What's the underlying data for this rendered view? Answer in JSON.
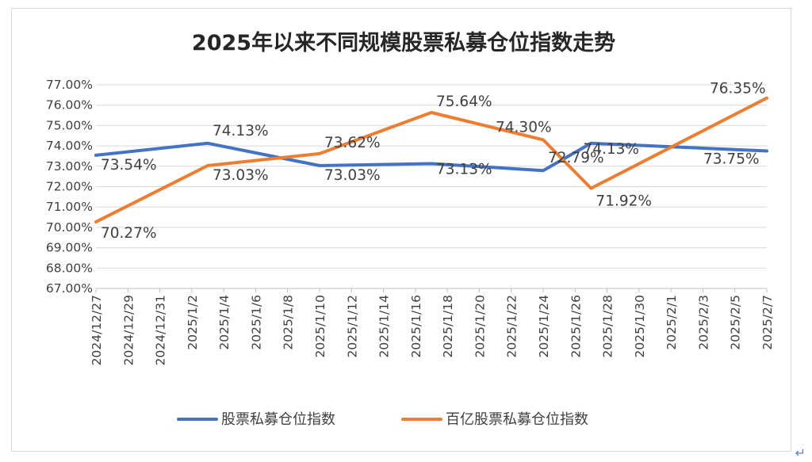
{
  "chart_data": {
    "type": "line",
    "title": "2025年以来不同规模股票私募仓位指数走势",
    "xlabel": "",
    "ylabel": "",
    "ylim": [
      67.0,
      77.0
    ],
    "ytick_labels": [
      "67.00%",
      "68.00%",
      "69.00%",
      "70.00%",
      "71.00%",
      "72.00%",
      "73.00%",
      "74.00%",
      "75.00%",
      "76.00%",
      "77.00%"
    ],
    "xtick_labels": [
      "2024/12/27",
      "2024/12/29",
      "2024/12/31",
      "2025/1/2",
      "2025/1/4",
      "2025/1/6",
      "2025/1/8",
      "2025/1/10",
      "2025/1/12",
      "2025/1/14",
      "2025/1/16",
      "2025/1/18",
      "2025/1/20",
      "2025/1/22",
      "2025/1/24",
      "2025/1/26",
      "2025/1/28",
      "2025/1/30",
      "2025/2/1",
      "2025/2/3",
      "2025/2/5",
      "2025/2/7"
    ],
    "x_start": "2024/12/27",
    "x_end": "2025/2/7",
    "grid": true,
    "legend_position": "bottom",
    "series": [
      {
        "name": "股票私募仓位指数",
        "color": "#4472c4",
        "points": [
          {
            "x": "2024/12/27",
            "y": 73.54,
            "label": "73.54%"
          },
          {
            "x": "2025/1/3",
            "y": 74.13,
            "label": "74.13%"
          },
          {
            "x": "2025/1/10",
            "y": 73.03,
            "label": "73.03%"
          },
          {
            "x": "2025/1/17",
            "y": 73.13,
            "label": "73.13%"
          },
          {
            "x": "2025/1/24",
            "y": 72.79,
            "label": "72.79%"
          },
          {
            "x": "2025/1/27",
            "y": 74.13,
            "label": "74.13%"
          },
          {
            "x": "2025/2/7",
            "y": 73.75,
            "label": "73.75%"
          }
        ]
      },
      {
        "name": "百亿股票私募仓位指数",
        "color": "#ed7d31",
        "points": [
          {
            "x": "2024/12/27",
            "y": 70.27,
            "label": "70.27%"
          },
          {
            "x": "2025/1/3",
            "y": 73.03,
            "label": "73.03%"
          },
          {
            "x": "2025/1/10",
            "y": 73.62,
            "label": "73.62%"
          },
          {
            "x": "2025/1/17",
            "y": 75.64,
            "label": "75.64%"
          },
          {
            "x": "2025/1/24",
            "y": 74.3,
            "label": "74.30%"
          },
          {
            "x": "2025/1/27",
            "y": 71.92,
            "label": "71.92%"
          },
          {
            "x": "2025/2/7",
            "y": 76.35,
            "label": "76.35%"
          }
        ]
      }
    ]
  },
  "misc": {
    "paragraph_mark": "↵"
  }
}
